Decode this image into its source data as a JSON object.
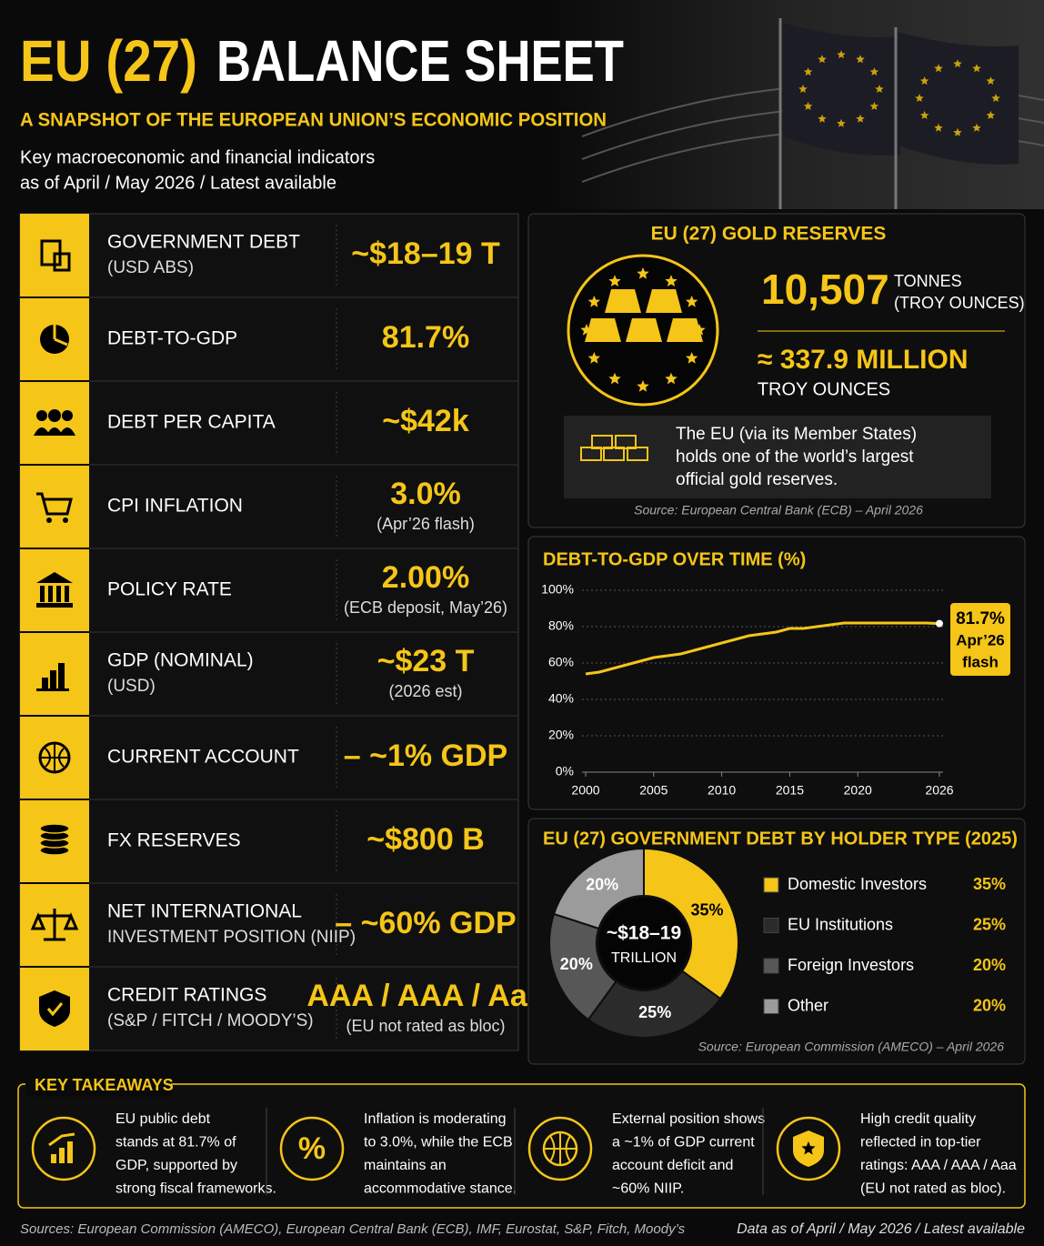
{
  "header": {
    "title_part1": "EU (27)",
    "title_part2": "BALANCE SHEET",
    "subtitle": "A SNAPSHOT OF THE EUROPEAN UNION’S ECONOMIC POSITION",
    "description": [
      "Key macroeconomic and financial indicators",
      "as of April / May 2026 / Latest available"
    ]
  },
  "indicators": [
    {
      "label": "GOVERNMENT DEBT",
      "sublabel": "(USD ABS)",
      "value": "~$18–19 T"
    },
    {
      "label": "DEBT-TO-GDP",
      "value": "81.7%"
    },
    {
      "label": "DEBT PER CAPITA",
      "value": "~$42k"
    },
    {
      "label": "CPI INFLATION",
      "value": "3.0%",
      "note": "(Apr’26 flash)"
    },
    {
      "label": "POLICY RATE",
      "value": "2.00%",
      "note": "(ECB deposit, May’26)"
    },
    {
      "label": "GDP (NOMINAL)",
      "sublabel": "(USD)",
      "value": "~$23 T",
      "note": "(2026 est)"
    },
    {
      "label": "CURRENT ACCOUNT",
      "value": "– ~1% GDP"
    },
    {
      "label": "FX RESERVES",
      "value": "~$800 B"
    },
    {
      "label": "NET INTERNATIONAL",
      "sublabel": "INVESTMENT POSITION (NIIP)",
      "value": "– ~60% GDP"
    },
    {
      "label": "CREDIT RATINGS",
      "sublabel": "(S&P / FITCH / MOODY’S)",
      "value": "AAA / AAA / Aaa",
      "note": "(EU not rated as bloc)"
    }
  ],
  "gold": {
    "title": "EU (27) GOLD RESERVES",
    "tonnes": "10,507",
    "tonnes_unit": "TONNES",
    "tonnes_unit_note": "(TROY OUNCES)",
    "ounces": "≈ 337.9 MILLION",
    "ounces_unit": "TROY OUNCES",
    "note": [
      "The EU (via its Member States)",
      "holds one of the world’s largest",
      "official gold reserves."
    ],
    "source": "Source: European Central Bank (ECB) – April 2026"
  },
  "chart_data": [
    {
      "type": "line",
      "title": "DEBT-TO-GDP OVER TIME (%)",
      "x": [
        2000,
        2001,
        2002,
        2003,
        2004,
        2005,
        2006,
        2007,
        2008,
        2009,
        2010,
        2011,
        2012,
        2013,
        2014,
        2015,
        2016,
        2017,
        2018,
        2019,
        2020,
        2021,
        2022,
        2023,
        2024,
        2025,
        2026
      ],
      "values": [
        54,
        55,
        57,
        59,
        61,
        63,
        64,
        65,
        67,
        69,
        71,
        73,
        75,
        76,
        77,
        79,
        79,
        80,
        81,
        82,
        82,
        82,
        82,
        82,
        82,
        82,
        81.7
      ],
      "color": "#f5c518",
      "xlim": [
        2000,
        2026
      ],
      "xticks": [
        2000,
        2005,
        2010,
        2015,
        2020,
        2026
      ],
      "ylim": [
        0,
        100
      ],
      "yticks": [
        {
          "value": 0,
          "label": "0%"
        },
        {
          "value": 20,
          "label": "20%"
        },
        {
          "value": 40,
          "label": "40%"
        },
        {
          "value": 60,
          "label": "60%"
        },
        {
          "value": 80,
          "label": "80%"
        },
        {
          "value": 100,
          "label": "100%"
        }
      ],
      "grid": true,
      "annotation": [
        "81.7%",
        "Apr’26",
        "flash"
      ]
    },
    {
      "type": "pie",
      "title": "EU (27) GOVERNMENT DEBT BY HOLDER TYPE (2025)",
      "categories": [
        "Domestic Investors",
        "EU Institutions",
        "Foreign Investors",
        "Other"
      ],
      "values": [
        35,
        25,
        20,
        20
      ],
      "value_labels": [
        "35%",
        "25%",
        "20%",
        "20%"
      ],
      "colors": [
        "#f5c518",
        "#2b2b2b",
        "#575757",
        "#9b9b9b"
      ],
      "center_label": [
        "~$18–19",
        "TRILLION"
      ],
      "source": "Source: European Commission (AMECO) – April 2026"
    }
  ],
  "takeaways": {
    "title": "KEY TAKEAWAYS",
    "items": [
      [
        "EU public debt",
        "stands at 81.7% of",
        "GDP, supported by",
        "strong fiscal frameworks."
      ],
      [
        "Inflation is moderating",
        "to 3.0%, while the ECB",
        "maintains an",
        "accommodative stance."
      ],
      [
        "External position shows",
        "a ~1% of GDP current",
        "account deficit and",
        "~60% NIIP."
      ],
      [
        "High credit quality",
        "reflected in top-tier",
        "ratings: AAA / AAA / Aaa",
        "(EU not rated as bloc)."
      ]
    ]
  },
  "footer": {
    "sources": "Sources: European Commission (AMECO), European Central Bank (ECB), IMF, Eurostat, S&P, Fitch, Moody’s",
    "as_of": "Data as of April / May 2026 / Latest available"
  }
}
